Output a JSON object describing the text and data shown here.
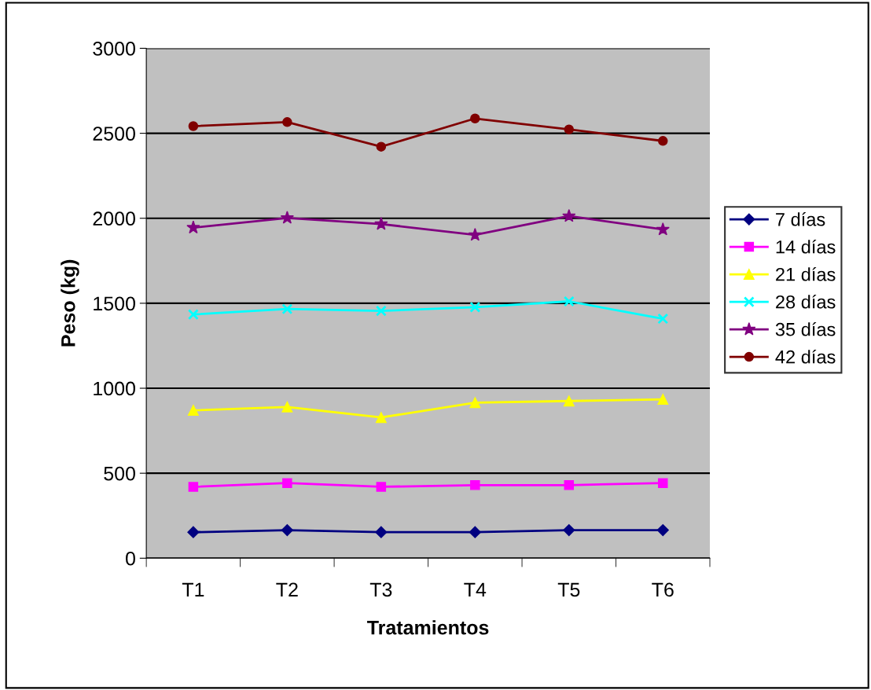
{
  "chart_data": {
    "type": "line",
    "xlabel": "Tratamientos",
    "ylabel": "Peso (kg)",
    "categories": [
      "T1",
      "T2",
      "T3",
      "T4",
      "T5",
      "T6"
    ],
    "series": [
      {
        "name": "7 días",
        "color": "#000080",
        "marker": "diamond",
        "values": [
          153,
          165,
          153,
          153,
          165,
          165
        ]
      },
      {
        "name": "14 días",
        "color": "#ff00ff",
        "marker": "square",
        "values": [
          420,
          442,
          420,
          430,
          430,
          442
        ]
      },
      {
        "name": "21 días",
        "color": "#ffff00",
        "marker": "triangle",
        "values": [
          870,
          890,
          828,
          915,
          925,
          935
        ]
      },
      {
        "name": "28 días",
        "color": "#00ffff",
        "marker": "cross",
        "values": [
          1434,
          1466,
          1455,
          1477,
          1511,
          1409
        ]
      },
      {
        "name": "35 días",
        "color": "#800080",
        "marker": "star",
        "values": [
          1945,
          2002,
          1966,
          1902,
          2013,
          1934
        ]
      },
      {
        "name": "42 días",
        "color": "#800000",
        "marker": "circle",
        "values": [
          2542,
          2566,
          2421,
          2587,
          2523,
          2455
        ]
      }
    ],
    "ylim": [
      0,
      3000
    ],
    "yticks": [
      0,
      500,
      1000,
      1500,
      2000,
      2500,
      3000
    ],
    "grid": "y",
    "legend": "right"
  }
}
